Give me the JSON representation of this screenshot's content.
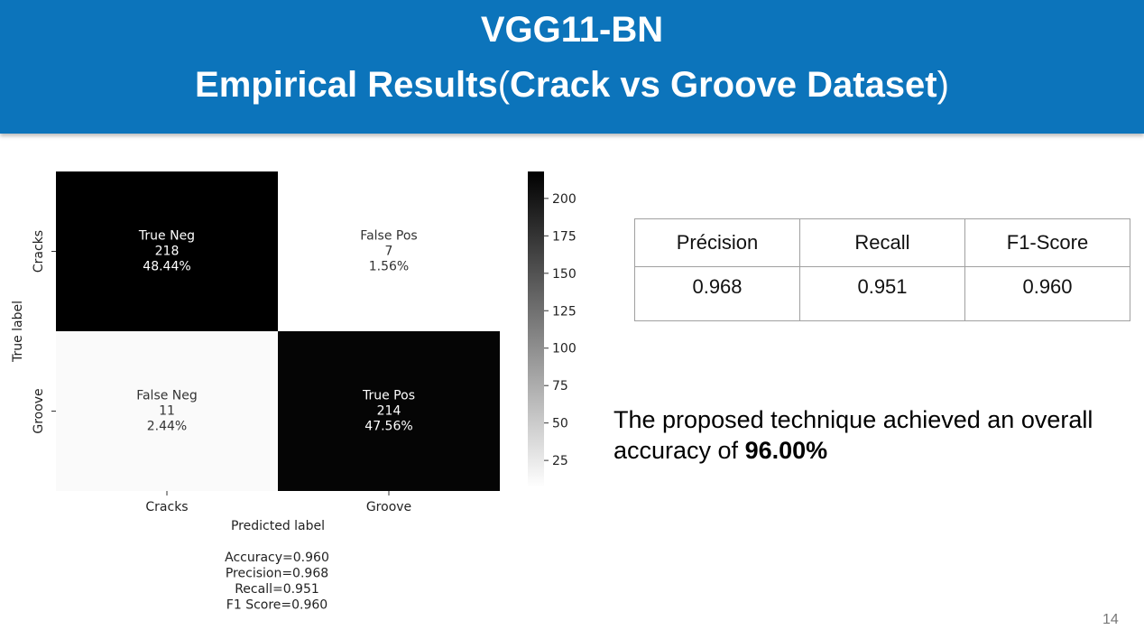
{
  "header": {
    "title_line1": "VGG11-BN",
    "title_line2_main": "Empirical  Results",
    "title_line2_open": "(",
    "title_line2_dataset": "Crack vs Groove Dataset",
    "title_line2_close": ")",
    "background_color": "#0c74bb"
  },
  "chart_data": {
    "type": "heatmap",
    "xlabel": "Predicted label",
    "ylabel": "True label",
    "x_categories": [
      "Cracks",
      "Groove"
    ],
    "y_categories": [
      "Cracks",
      "Groove"
    ],
    "cells": [
      {
        "row": 0,
        "col": 0,
        "name": "True Neg",
        "value": 218,
        "percent": "48.44%"
      },
      {
        "row": 0,
        "col": 1,
        "name": "False Pos",
        "value": 7,
        "percent": "1.56%"
      },
      {
        "row": 1,
        "col": 0,
        "name": "False Neg",
        "value": 11,
        "percent": "2.44%"
      },
      {
        "row": 1,
        "col": 1,
        "name": "True Pos",
        "value": 214,
        "percent": "47.56%"
      }
    ],
    "colorbar": {
      "colormap": "binary",
      "range": [
        7,
        218
      ],
      "ticks": [
        25,
        50,
        75,
        100,
        125,
        150,
        175,
        200
      ]
    },
    "stats": [
      "Accuracy=0.960",
      "Precision=0.968",
      "Recall=0.951",
      "F1 Score=0.960"
    ]
  },
  "metrics_table": {
    "headers": [
      "Précision",
      "Recall",
      "F1-Score"
    ],
    "values": [
      "0.968",
      "0.951",
      "0.960"
    ]
  },
  "summary": {
    "text": "The proposed technique achieved an overall accuracy of ",
    "accuracy": "96.00%"
  },
  "page_number": "14"
}
